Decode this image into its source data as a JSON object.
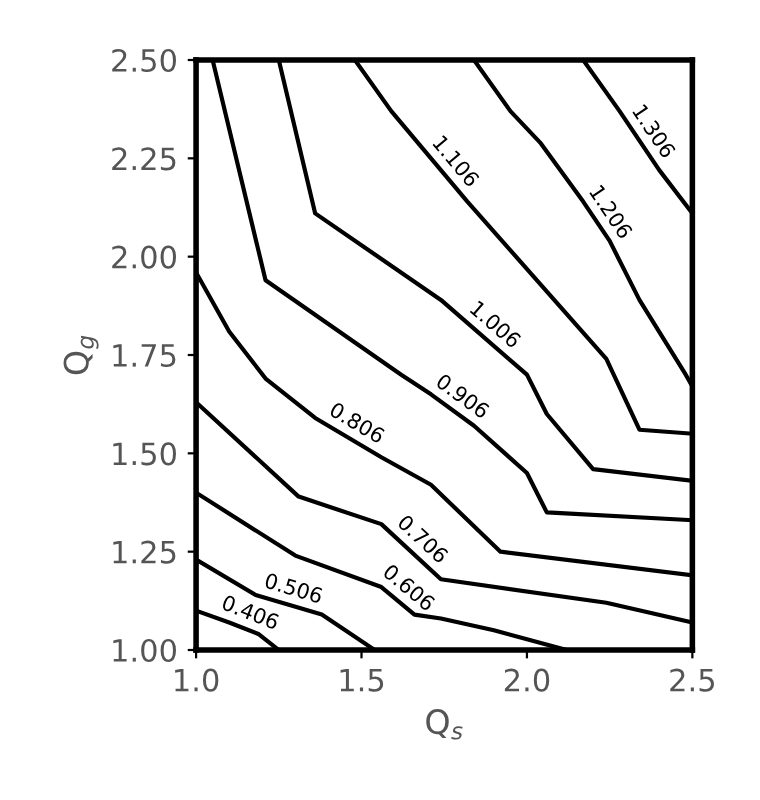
{
  "chart_data": {
    "type": "line",
    "xlabel": "Q$_{s}$",
    "ylabel": "Q$_{g}$",
    "xlim": [
      1.0,
      2.5
    ],
    "ylim": [
      1.0,
      2.5
    ],
    "xticks": [
      {
        "value": 1.0,
        "label": "1.0"
      },
      {
        "value": 1.5,
        "label": "1.5"
      },
      {
        "value": 2.0,
        "label": "2.0"
      },
      {
        "value": 2.5,
        "label": "2.5"
      }
    ],
    "yticks": [
      {
        "value": 1.0,
        "label": "1.00"
      },
      {
        "value": 1.25,
        "label": "1.25"
      },
      {
        "value": 1.5,
        "label": "1.50"
      },
      {
        "value": 1.75,
        "label": "1.75"
      },
      {
        "value": 2.0,
        "label": "2.00"
      },
      {
        "value": 2.25,
        "label": "2.25"
      },
      {
        "value": 2.5,
        "label": "2.50"
      }
    ],
    "grid": false,
    "legend": false,
    "marker": "none",
    "line_style": "solid",
    "series": [
      {
        "name": "0.406",
        "color": "#000000",
        "x": [
          1.0,
          1.1,
          1.19,
          1.25
        ],
        "values": [
          1.1,
          1.07,
          1.04,
          1.0
        ]
      },
      {
        "name": "0.506",
        "color": "#000000",
        "x": [
          1.0,
          1.18,
          1.38,
          1.54
        ],
        "values": [
          1.23,
          1.14,
          1.09,
          1.0
        ]
      },
      {
        "name": "0.606",
        "color": "#000000",
        "x": [
          1.0,
          1.3,
          1.56,
          1.66,
          1.74,
          1.9,
          2.12
        ],
        "values": [
          1.4,
          1.24,
          1.16,
          1.09,
          1.08,
          1.05,
          1.0
        ]
      },
      {
        "name": "0.706",
        "color": "#000000",
        "x": [
          1.0,
          1.31,
          1.56,
          1.74,
          2.24,
          2.5
        ],
        "values": [
          1.63,
          1.39,
          1.32,
          1.18,
          1.12,
          1.07
        ]
      },
      {
        "name": "0.806",
        "color": "#000000",
        "x": [
          1.0,
          1.1,
          1.21,
          1.36,
          1.56,
          1.71,
          1.92,
          2.5
        ],
        "values": [
          1.96,
          1.81,
          1.69,
          1.59,
          1.49,
          1.42,
          1.25,
          1.19
        ]
      },
      {
        "name": "0.906",
        "color": "#000000",
        "x": [
          1.05,
          1.21,
          1.62,
          1.71,
          1.84,
          2.0,
          2.06,
          2.5
        ],
        "values": [
          2.5,
          1.94,
          1.7,
          1.65,
          1.57,
          1.45,
          1.35,
          1.33
        ]
      },
      {
        "name": "1.006",
        "color": "#000000",
        "x": [
          1.25,
          1.36,
          1.74,
          2.0,
          2.06,
          2.2,
          2.5
        ],
        "values": [
          2.5,
          2.11,
          1.89,
          1.7,
          1.6,
          1.46,
          1.43
        ]
      },
      {
        "name": "1.106",
        "color": "#000000",
        "x": [
          1.48,
          1.59,
          1.67,
          1.82,
          2.24,
          2.34,
          2.5
        ],
        "values": [
          2.5,
          2.37,
          2.29,
          2.14,
          1.74,
          1.56,
          1.55
        ]
      },
      {
        "name": "1.206",
        "color": "#000000",
        "x": [
          1.84,
          1.95,
          2.04,
          2.17,
          2.25,
          2.34,
          2.48,
          2.5
        ],
        "values": [
          2.5,
          2.37,
          2.29,
          2.14,
          2.04,
          1.89,
          1.7,
          1.67
        ]
      },
      {
        "name": "1.306",
        "color": "#000000",
        "x": [
          2.17,
          2.28,
          2.4,
          2.5
        ],
        "values": [
          2.5,
          2.37,
          2.22,
          2.11
        ]
      }
    ]
  }
}
